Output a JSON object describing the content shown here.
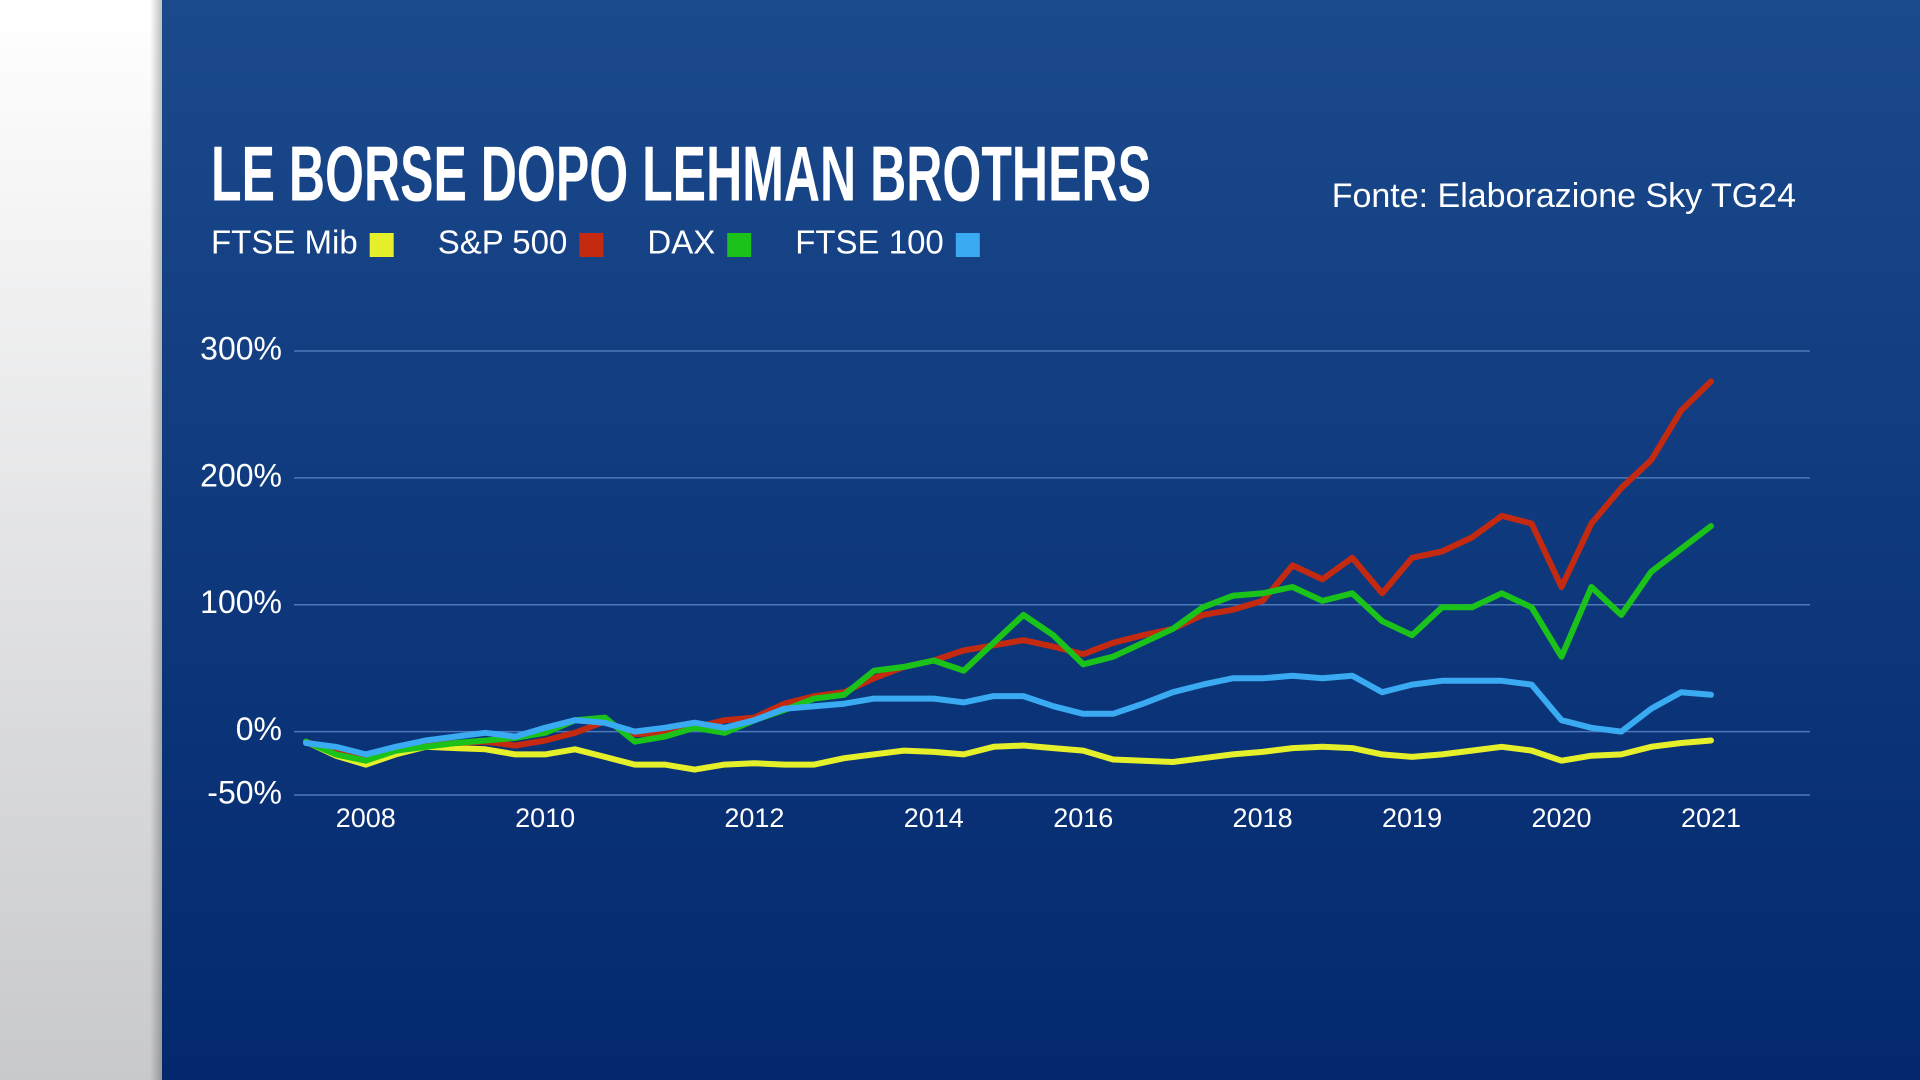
{
  "chart_data": {
    "type": "line",
    "title": "LE BORSE DOPO LEHMAN BROTHERS",
    "source": "Fonte: Elaborazione Sky TG24",
    "categories": [
      null,
      null,
      "2008",
      null,
      null,
      null,
      null,
      null,
      "2010",
      null,
      null,
      null,
      null,
      null,
      null,
      "2012",
      null,
      null,
      null,
      null,
      null,
      "2014",
      null,
      null,
      null,
      null,
      "2016",
      null,
      null,
      null,
      null,
      null,
      "2018",
      null,
      null,
      null,
      null,
      "2019",
      null,
      null,
      null,
      null,
      "2020",
      null,
      null,
      null,
      null,
      "2021"
    ],
    "series": [
      {
        "name": "FTSE Mib",
        "color": "#e6f02a",
        "values": [
          -8,
          -19,
          -26,
          -18,
          -12,
          -13,
          -14,
          -18,
          -18,
          -14,
          -20,
          -26,
          -26,
          -30,
          -26,
          -25,
          -26,
          -26,
          -21,
          -18,
          -15,
          -16,
          -18,
          -12,
          -11,
          -13,
          -15,
          -22,
          -23,
          -24,
          -21,
          -18,
          -16,
          -13,
          -12,
          -13,
          -18,
          -20,
          -18,
          -15,
          -12,
          -15,
          -23,
          -19,
          -18,
          -12,
          -9,
          -7
        ]
      },
      {
        "name": "S&P 500",
        "color": "#c42a10",
        "values": [
          -8,
          -16,
          -20,
          -15,
          -11,
          -9,
          -8,
          -11,
          -7,
          -1,
          8,
          -2,
          -1,
          3,
          9,
          11,
          22,
          28,
          31,
          42,
          51,
          56,
          64,
          68,
          72,
          67,
          61,
          70,
          76,
          81,
          92,
          96,
          103,
          131,
          120,
          137,
          109,
          137,
          142,
          153,
          170,
          164,
          114,
          164,
          192,
          214,
          253,
          276
        ]
      },
      {
        "name": "DAX",
        "color": "#1ac21a",
        "values": [
          -8,
          -18,
          -23,
          -15,
          -12,
          -9,
          -7,
          -5,
          -1,
          9,
          11,
          -8,
          -4,
          3,
          -1,
          9,
          17,
          26,
          29,
          48,
          51,
          56,
          48,
          70,
          92,
          76,
          53,
          59,
          70,
          81,
          98,
          107,
          109,
          114,
          103,
          109,
          87,
          76,
          98,
          98,
          109,
          98,
          59,
          114,
          92,
          126,
          144,
          162
        ]
      },
      {
        "name": "FTSE 100",
        "color": "#3aaaf2",
        "values": [
          -9,
          -12,
          -18,
          -12,
          -7,
          -4,
          -1,
          -4,
          3,
          9,
          7,
          0,
          3,
          7,
          3,
          9,
          18,
          20,
          22,
          26,
          26,
          26,
          23,
          28,
          28,
          20,
          14,
          14,
          22,
          31,
          37,
          42,
          42,
          44,
          42,
          44,
          31,
          37,
          40,
          40,
          40,
          37,
          9,
          3,
          0,
          18,
          31,
          29
        ]
      }
    ],
    "ylim": [
      -50,
      300
    ],
    "yticks": [
      {
        "value": 300,
        "label": "300%"
      },
      {
        "value": 200,
        "label": "200%"
      },
      {
        "value": 100,
        "label": "100%"
      },
      {
        "value": 0,
        "label": "0%"
      },
      {
        "value": -50,
        "label": "-50%"
      }
    ],
    "grid": true
  }
}
